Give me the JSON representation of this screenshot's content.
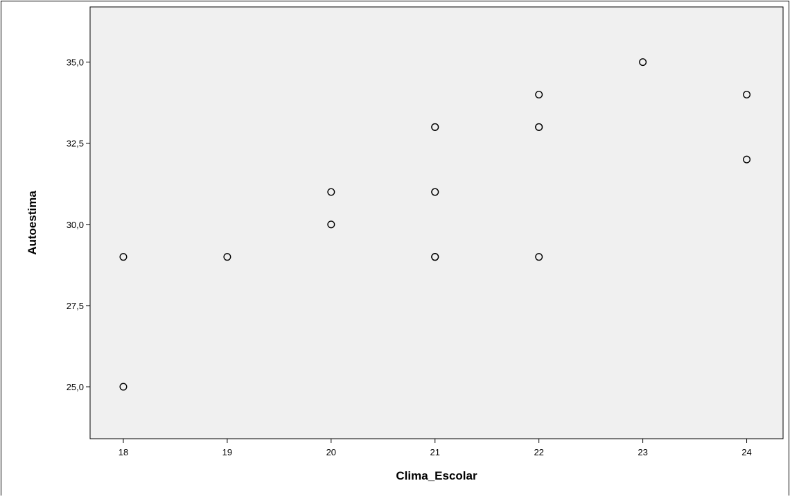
{
  "colors": {
    "plot_background": "#f0f0f0",
    "axis_line": "#000000",
    "point_stroke": "#000000",
    "point_fill": "#f0f0f0",
    "page_background": "#ffffff"
  },
  "chart_data": {
    "type": "scatter",
    "title": "",
    "xlabel": "Clima_Escolar",
    "ylabel": "Autoestima",
    "xlim": [
      17.68,
      24.35
    ],
    "ylim": [
      23.4,
      36.7
    ],
    "x_ticks": [
      18,
      19,
      20,
      21,
      22,
      23,
      24
    ],
    "x_tick_labels": [
      "18",
      "19",
      "20",
      "21",
      "22",
      "23",
      "24"
    ],
    "y_ticks": [
      25.0,
      27.5,
      30.0,
      32.5,
      35.0
    ],
    "y_tick_labels": [
      "25,0",
      "27,5",
      "30,0",
      "32,5",
      "35,0"
    ],
    "grid": false,
    "legend": "none",
    "marker": "open-circle",
    "points": [
      {
        "x": 18,
        "y": 29
      },
      {
        "x": 18,
        "y": 25
      },
      {
        "x": 19,
        "y": 29
      },
      {
        "x": 20,
        "y": 31
      },
      {
        "x": 20,
        "y": 30
      },
      {
        "x": 21,
        "y": 33
      },
      {
        "x": 21,
        "y": 33
      },
      {
        "x": 21,
        "y": 31
      },
      {
        "x": 21,
        "y": 31
      },
      {
        "x": 21,
        "y": 29
      },
      {
        "x": 21,
        "y": 29
      },
      {
        "x": 21,
        "y": 29
      },
      {
        "x": 22,
        "y": 34
      },
      {
        "x": 22,
        "y": 33
      },
      {
        "x": 22,
        "y": 33
      },
      {
        "x": 22,
        "y": 29
      },
      {
        "x": 23,
        "y": 35
      },
      {
        "x": 24,
        "y": 34
      },
      {
        "x": 24,
        "y": 32
      }
    ]
  }
}
